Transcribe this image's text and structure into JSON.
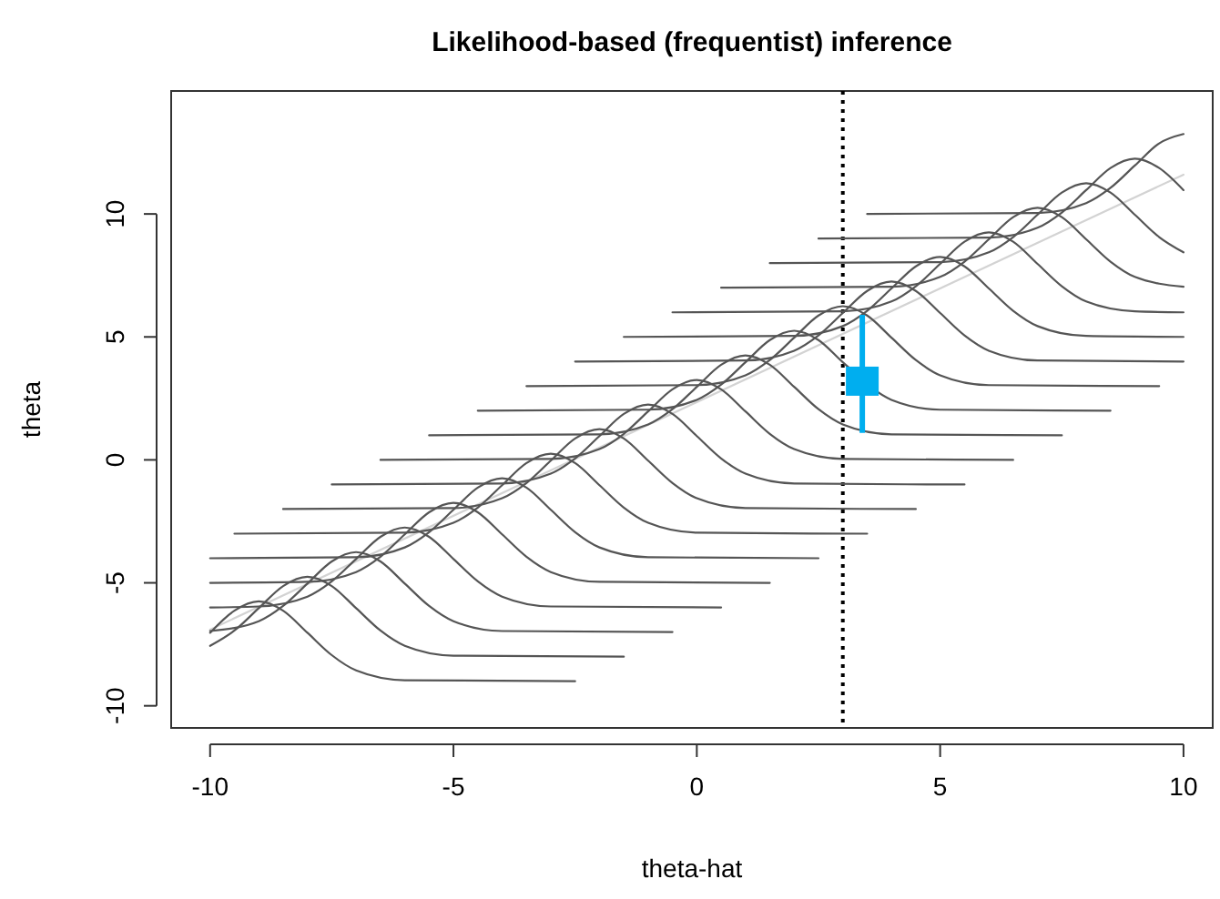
{
  "chart_data": {
    "type": "line",
    "title": "Likelihood-based (frequentist) inference",
    "xlabel": "theta-hat",
    "ylabel": "theta",
    "xlim": [
      -10.8,
      10.6
    ],
    "ylim": [
      -10.9,
      15.0
    ],
    "xticks": [
      -10,
      -5,
      0,
      5,
      10
    ],
    "yticks": [
      -10,
      -5,
      0,
      5,
      10
    ],
    "grid": false,
    "ref_lines": [
      {
        "axis": "x",
        "value": 3,
        "color": "#000000",
        "line_style": "dotted"
      }
    ],
    "series": [
      {
        "color": "#d3d3d3",
        "x": [
          -10,
          10
        ],
        "values": [
          -6.9,
          11.6
        ]
      },
      {
        "color": "#555555",
        "x": [
          -10,
          -9.5,
          -9,
          -8.5,
          -8,
          -7.5,
          -7,
          -6,
          -2.5
        ],
        "values": [
          -7.03,
          -6.13,
          -5.75,
          -6.13,
          -7.03,
          -7.94,
          -8.56,
          -8.96,
          -9
        ]
      },
      {
        "color": "#555555",
        "x": [
          -10,
          -9.5,
          -9,
          -8.5,
          -8,
          -7.5,
          -7,
          -6.5,
          -6,
          -5,
          -1.5
        ],
        "values": [
          -7.56,
          -6.94,
          -6.03,
          -5.13,
          -4.75,
          -5.13,
          -6.03,
          -6.94,
          -7.56,
          -7.96,
          -8
        ]
      },
      {
        "color": "#555555",
        "x": [
          -10,
          -9,
          -8.5,
          -8,
          -7.5,
          -7,
          -6.5,
          -6,
          -5.5,
          -5,
          -4,
          -0.5
        ],
        "values": [
          -6.96,
          -6.56,
          -5.94,
          -5.03,
          -4.13,
          -3.75,
          -4.13,
          -5.03,
          -5.94,
          -6.56,
          -6.96,
          -7
        ]
      },
      {
        "color": "#555555",
        "x": [
          -10,
          -9,
          -8,
          -7.5,
          -7,
          -6.5,
          -6,
          -5.5,
          -5,
          -4.5,
          -4,
          -3,
          0.5
        ],
        "values": [
          -6,
          -5.96,
          -5.56,
          -4.94,
          -4.03,
          -3.13,
          -2.75,
          -3.13,
          -4.03,
          -4.94,
          -5.56,
          -5.96,
          -6
        ]
      },
      {
        "color": "#555555",
        "x": [
          -10,
          -8,
          -7,
          -6.5,
          -6,
          -5.5,
          -5,
          -4.5,
          -4,
          -3.5,
          -3,
          -2,
          1.5
        ],
        "values": [
          -5,
          -4.96,
          -4.56,
          -3.94,
          -3.03,
          -2.13,
          -1.75,
          -2.13,
          -3.03,
          -3.94,
          -4.56,
          -4.96,
          -5
        ]
      },
      {
        "color": "#555555",
        "x": [
          -10,
          -7,
          -6,
          -5.5,
          -5,
          -4.5,
          -4,
          -3.5,
          -3,
          -2.5,
          -2,
          -1,
          2.5
        ],
        "values": [
          -4,
          -3.96,
          -3.56,
          -2.94,
          -2.03,
          -1.13,
          -0.75,
          -1.13,
          -2.03,
          -2.94,
          -3.56,
          -3.96,
          -4
        ]
      },
      {
        "color": "#555555",
        "x": [
          -9.5,
          -6,
          -5,
          -4.5,
          -4,
          -3.5,
          -3,
          -2.5,
          -2,
          -1.5,
          -1,
          0,
          3.5
        ],
        "values": [
          -3,
          -2.96,
          -2.56,
          -1.94,
          -1.03,
          -0.13,
          0.25,
          -0.13,
          -1.03,
          -1.94,
          -2.56,
          -2.96,
          -3
        ]
      },
      {
        "color": "#555555",
        "x": [
          -8.5,
          -5,
          -4,
          -3.5,
          -3,
          -2.5,
          -2,
          -1.5,
          -1,
          -0.5,
          0,
          1,
          4.5
        ],
        "values": [
          -2,
          -1.96,
          -1.56,
          -0.94,
          -0.03,
          0.87,
          1.25,
          0.87,
          -0.03,
          -0.94,
          -1.56,
          -1.96,
          -2
        ]
      },
      {
        "color": "#555555",
        "x": [
          -7.5,
          -4,
          -3,
          -2.5,
          -2,
          -1.5,
          -1,
          -0.5,
          0,
          0.5,
          1,
          2,
          5.5
        ],
        "values": [
          -1,
          -0.96,
          -0.56,
          0.06,
          0.97,
          1.87,
          2.25,
          1.87,
          0.97,
          0.06,
          -0.56,
          -0.96,
          -1
        ]
      },
      {
        "color": "#555555",
        "x": [
          -6.5,
          -3,
          -2,
          -1.5,
          -1,
          -0.5,
          0,
          0.5,
          1,
          1.5,
          2,
          3,
          6.5
        ],
        "values": [
          0,
          0.04,
          0.44,
          1.06,
          1.97,
          2.87,
          3.25,
          2.87,
          1.97,
          1.06,
          0.44,
          0.04,
          0
        ]
      },
      {
        "color": "#555555",
        "x": [
          -5.5,
          -2,
          -1,
          -0.5,
          0,
          0.5,
          1,
          1.5,
          2,
          2.5,
          3,
          4,
          7.5
        ],
        "values": [
          1,
          1.04,
          1.44,
          2.06,
          2.97,
          3.87,
          4.25,
          3.87,
          2.97,
          2.06,
          1.44,
          1.04,
          1
        ]
      },
      {
        "color": "#555555",
        "x": [
          -4.5,
          -1,
          0,
          0.5,
          1,
          1.5,
          2,
          2.5,
          3,
          3.5,
          4,
          5,
          8.5
        ],
        "values": [
          2,
          2.04,
          2.44,
          3.06,
          3.97,
          4.87,
          5.25,
          4.87,
          3.97,
          null,
          2.44,
          2.04,
          2
        ]
      },
      {
        "color": "#555555",
        "x": [
          -3.5,
          0,
          1,
          1.5,
          2,
          2.5,
          3,
          3.5,
          4,
          4.5,
          5,
          6,
          9.5
        ],
        "values": [
          3,
          3.04,
          3.44,
          4.06,
          4.97,
          5.87,
          6.25,
          5.87,
          4.97,
          4.06,
          3.44,
          3.04,
          3
        ]
      },
      {
        "color": "#555555",
        "x": [
          -2.5,
          1,
          2,
          2.5,
          3,
          3.5,
          4,
          4.5,
          5,
          5.5,
          6,
          7,
          10
        ],
        "values": [
          4,
          4.04,
          4.44,
          5.06,
          5.97,
          6.87,
          7.25,
          6.87,
          5.97,
          5.06,
          4.44,
          4.04,
          4
        ]
      },
      {
        "color": "#555555",
        "x": [
          -1.5,
          2,
          3,
          3.5,
          4,
          4.5,
          5,
          5.5,
          6,
          6.5,
          7,
          8,
          10
        ],
        "values": [
          5,
          5.04,
          5.44,
          6.06,
          6.97,
          7.87,
          8.25,
          7.87,
          6.97,
          6.06,
          5.44,
          5.04,
          5
        ]
      },
      {
        "color": "#555555",
        "x": [
          -0.5,
          3,
          4,
          4.5,
          5,
          5.5,
          6,
          6.5,
          7,
          7.5,
          8,
          9,
          10
        ],
        "values": [
          6,
          6.04,
          6.44,
          7.06,
          7.97,
          8.87,
          9.25,
          8.87,
          7.97,
          7.06,
          6.44,
          6.04,
          6
        ]
      },
      {
        "color": "#555555",
        "x": [
          0.5,
          4,
          5,
          5.5,
          6,
          6.5,
          7,
          7.5,
          8,
          8.5,
          9,
          10
        ],
        "values": [
          7,
          7.04,
          7.44,
          8.06,
          8.97,
          9.87,
          10.25,
          9.87,
          8.97,
          8.06,
          7.44,
          7.04
        ]
      },
      {
        "color": "#555555",
        "x": [
          1.5,
          5,
          6,
          6.5,
          7,
          7.5,
          8,
          8.5,
          9,
          9.5,
          10
        ],
        "values": [
          8,
          8.04,
          8.44,
          9.06,
          9.97,
          10.87,
          11.25,
          10.87,
          9.97,
          9.06,
          8.44
        ]
      },
      {
        "color": "#555555",
        "x": [
          2.5,
          6,
          7,
          7.5,
          8,
          8.5,
          9,
          9.5,
          10
        ],
        "values": [
          9,
          9.04,
          9.44,
          10.06,
          10.97,
          11.87,
          12.25,
          11.87,
          10.97
        ]
      },
      {
        "color": "#555555",
        "x": [
          3.5,
          7,
          8,
          8.5,
          9,
          9.5,
          10
        ],
        "values": [
          10,
          10.04,
          10.44,
          11.06,
          11.97,
          12.87,
          13.25
        ]
      },
      {
        "type": "scatter",
        "color": "#00aeef",
        "marker": "square",
        "x": [
          3.4
        ],
        "values": [
          3.2
        ],
        "errors": [
          [
            1.1,
            5.9
          ]
        ]
      }
    ]
  }
}
